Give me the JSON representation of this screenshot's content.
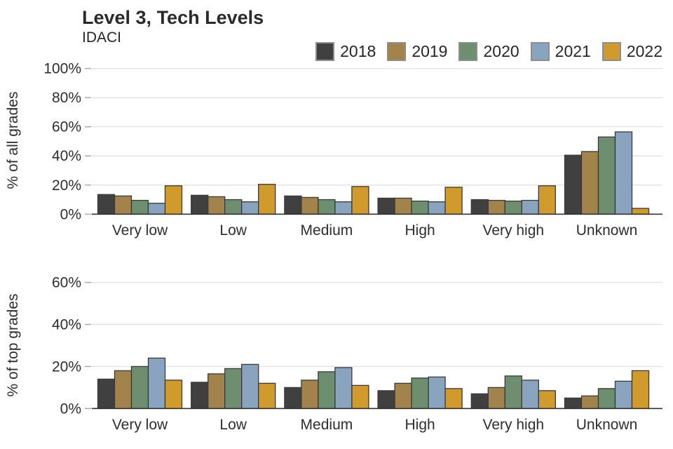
{
  "header": {
    "title": "Level 3, Tech Levels",
    "subtitle": "IDACI"
  },
  "legend": {
    "position": "top-right",
    "entries": [
      {
        "label": "2018",
        "color": "#404040"
      },
      {
        "label": "2019",
        "color": "#a3834c"
      },
      {
        "label": "2020",
        "color": "#6d8f70"
      },
      {
        "label": "2021",
        "color": "#8aa4c0"
      },
      {
        "label": "2022",
        "color": "#d09a2d"
      }
    ]
  },
  "chart_data": [
    {
      "type": "bar",
      "title": "Level 3, Tech Levels",
      "subtitle": "IDACI",
      "ylabel": "% of all grades",
      "xlabel": "",
      "categories": [
        "Very low",
        "Low",
        "Medium",
        "High",
        "Very high",
        "Unknown"
      ],
      "series": [
        {
          "name": "2018",
          "color": "#404040",
          "values": [
            13.5,
            13,
            12.5,
            11,
            10,
            40.5
          ]
        },
        {
          "name": "2019",
          "color": "#a3834c",
          "values": [
            12.5,
            12,
            11.5,
            11,
            9.5,
            43
          ]
        },
        {
          "name": "2020",
          "color": "#6d8f70",
          "values": [
            9.5,
            10,
            10,
            9,
            9,
            53
          ]
        },
        {
          "name": "2021",
          "color": "#8aa4c0",
          "values": [
            7.5,
            8.5,
            8.5,
            8.5,
            9.5,
            56.5
          ]
        },
        {
          "name": "2022",
          "color": "#d09a2d",
          "values": [
            19.5,
            20.5,
            19,
            18.5,
            19.5,
            4
          ]
        }
      ],
      "ylim": [
        0,
        100
      ],
      "yticks": [
        0,
        20,
        40,
        60,
        80,
        100
      ],
      "grid": true,
      "legend_position": "top-right"
    },
    {
      "type": "bar",
      "ylabel": "% of top grades",
      "xlabel": "",
      "categories": [
        "Very low",
        "Low",
        "Medium",
        "High",
        "Very high",
        "Unknown"
      ],
      "series": [
        {
          "name": "2018",
          "color": "#404040",
          "values": [
            14,
            12.5,
            10,
            8.5,
            7,
            5
          ]
        },
        {
          "name": "2019",
          "color": "#a3834c",
          "values": [
            18,
            16.5,
            13.5,
            12,
            10,
            6
          ]
        },
        {
          "name": "2020",
          "color": "#6d8f70",
          "values": [
            20,
            19,
            17.5,
            14.5,
            15.5,
            9.5
          ]
        },
        {
          "name": "2021",
          "color": "#8aa4c0",
          "values": [
            24,
            21,
            19.5,
            15,
            13.5,
            13
          ]
        },
        {
          "name": "2022",
          "color": "#d09a2d",
          "values": [
            13.5,
            12,
            11,
            9.5,
            8.5,
            18
          ]
        }
      ],
      "ylim": [
        0,
        60
      ],
      "yticks": [
        0,
        20,
        40,
        60
      ],
      "grid": true
    }
  ]
}
